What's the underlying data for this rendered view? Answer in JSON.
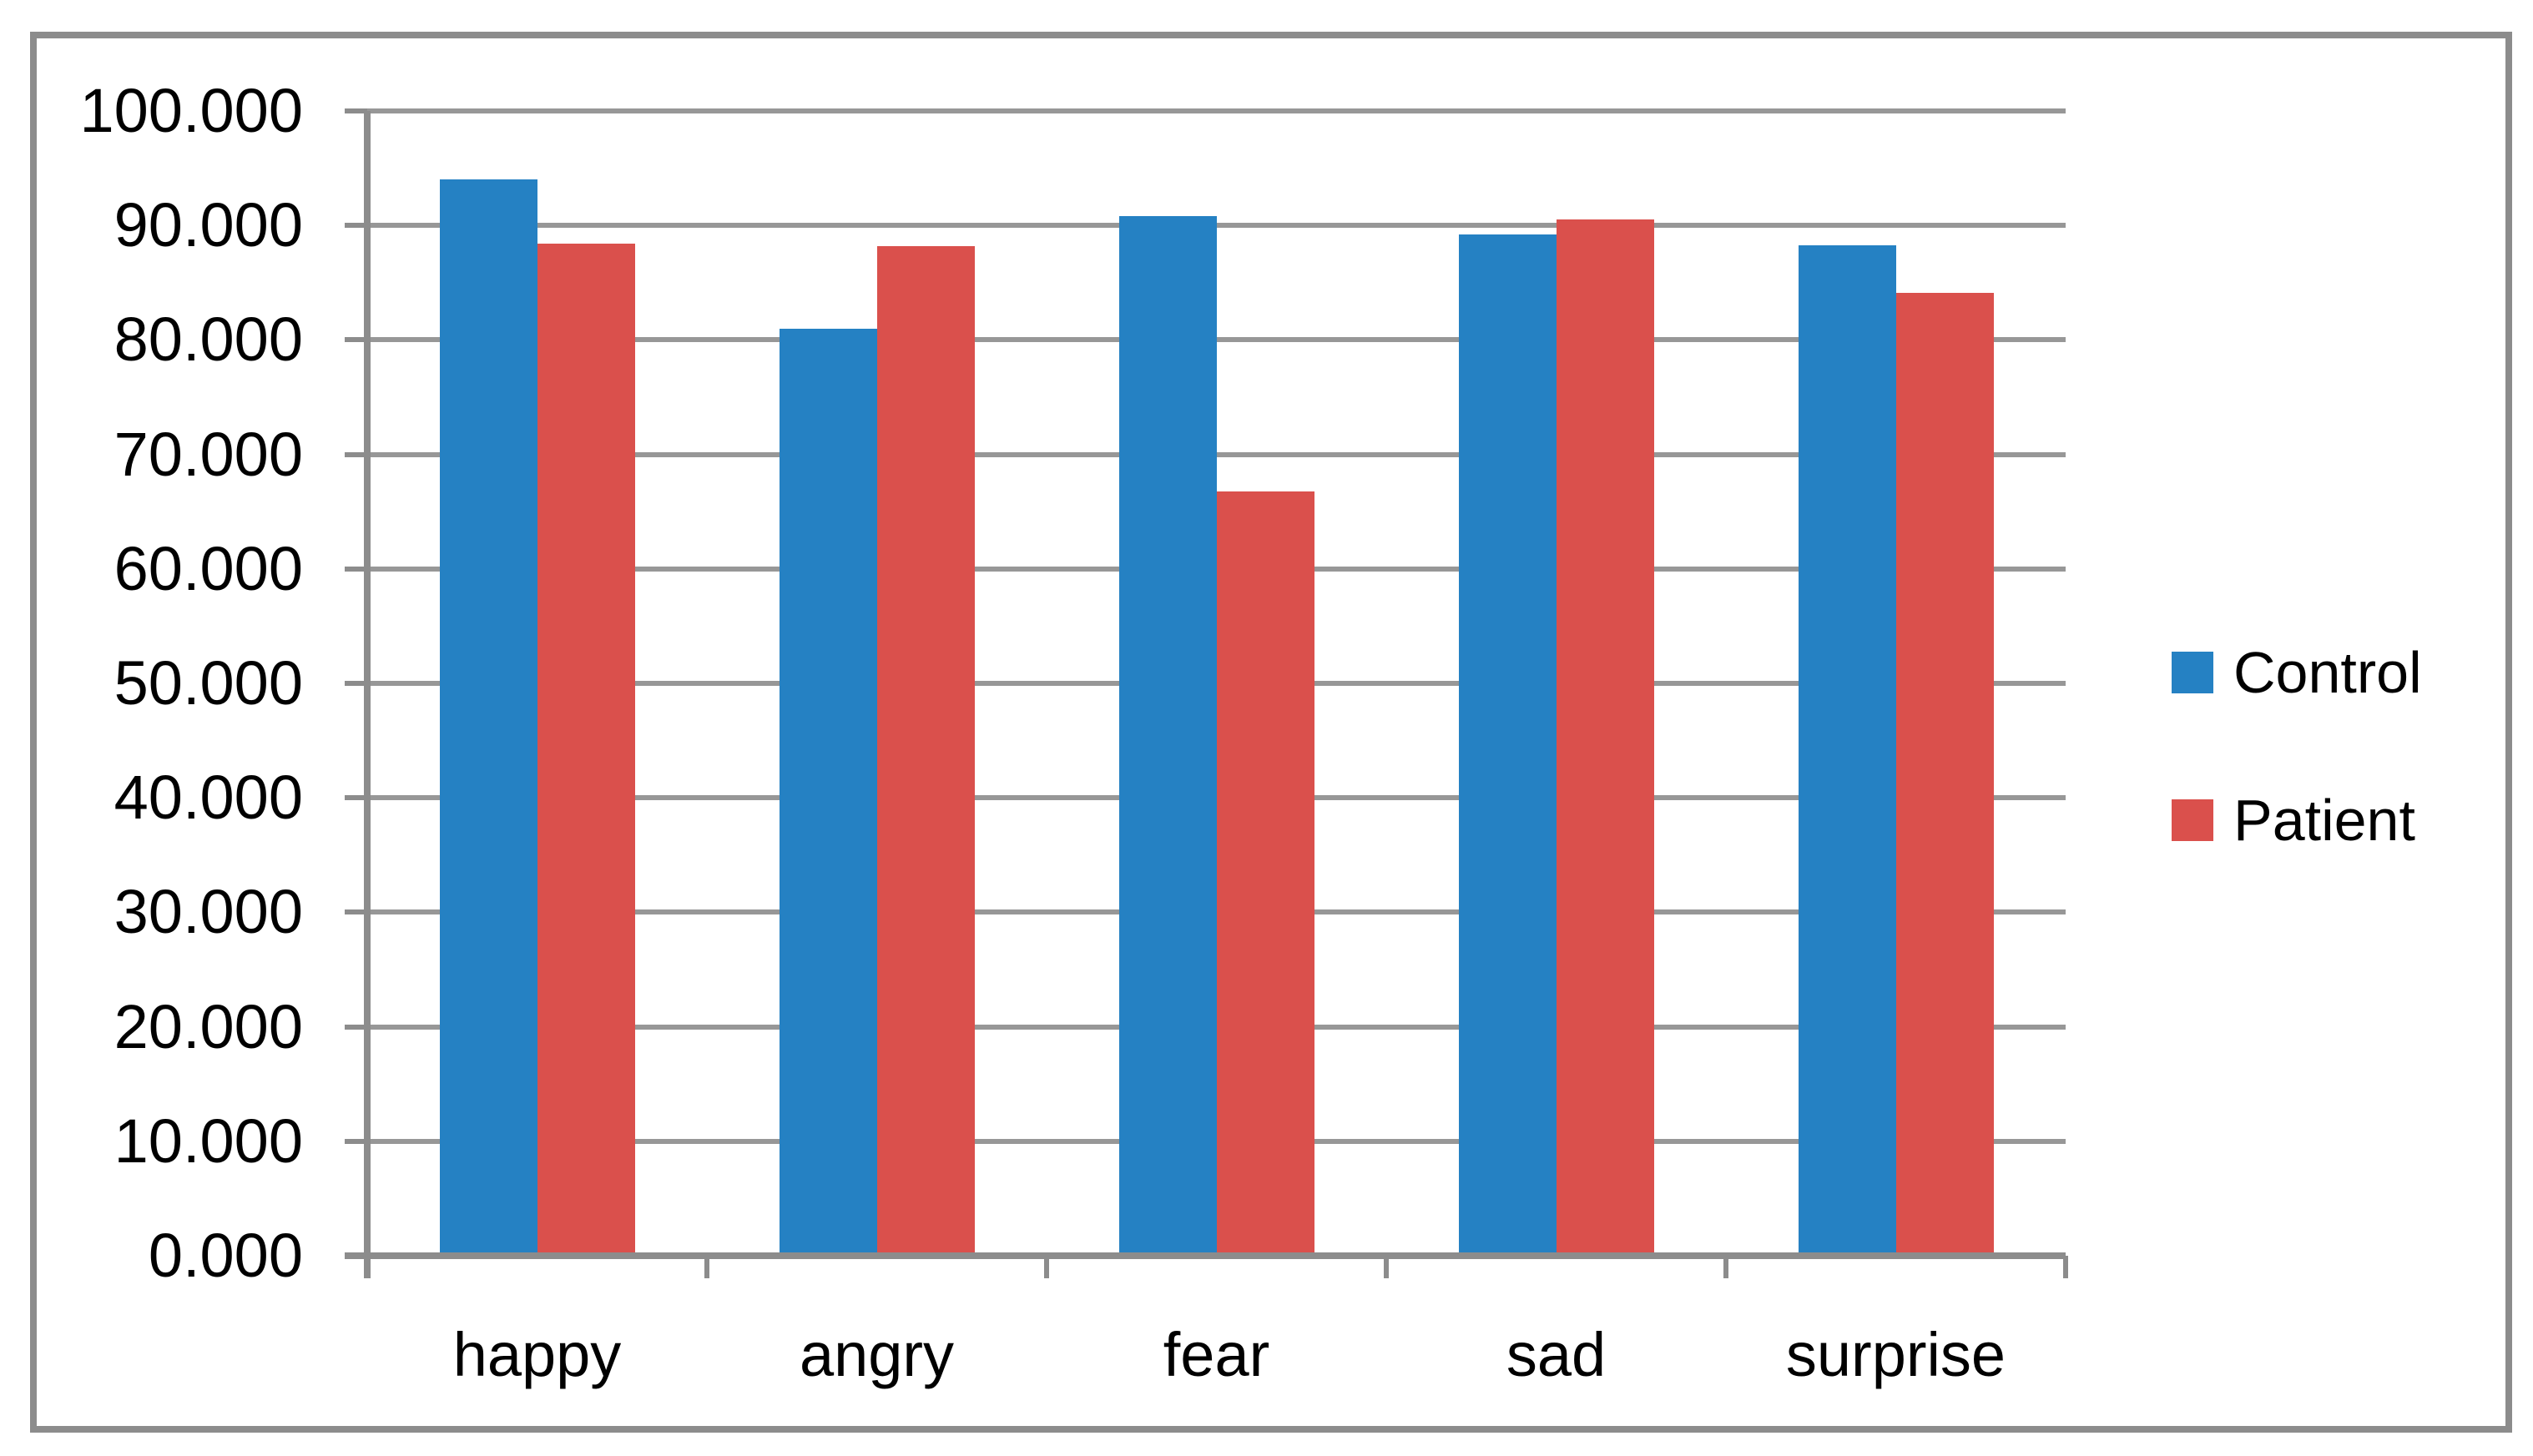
{
  "chart_data": {
    "type": "bar",
    "title": "",
    "xlabel": "",
    "ylabel": "",
    "categories": [
      "happy",
      "angry",
      "fear",
      "sad",
      "surprise"
    ],
    "series": [
      {
        "name": "Control",
        "color": "#2581C3",
        "values": [
          94.0,
          81.0,
          90.8,
          89.2,
          88.3
        ]
      },
      {
        "name": "Patient",
        "color": "#DA504C",
        "values": [
          88.4,
          88.2,
          66.8,
          90.5,
          84.1
        ]
      }
    ],
    "ylim": [
      0,
      100
    ],
    "ytick_step": 10,
    "ytick_labels": [
      "0.000",
      "10.000",
      "20.000",
      "30.000",
      "40.000",
      "50.000",
      "60.000",
      "70.000",
      "80.000",
      "90.000",
      "100.000"
    ],
    "grid": true,
    "legend_position": "right",
    "grid_color": "#979797",
    "axis_color": "#8C8C8C",
    "border_color": "#8C8C8C",
    "text_color": "#000000"
  }
}
